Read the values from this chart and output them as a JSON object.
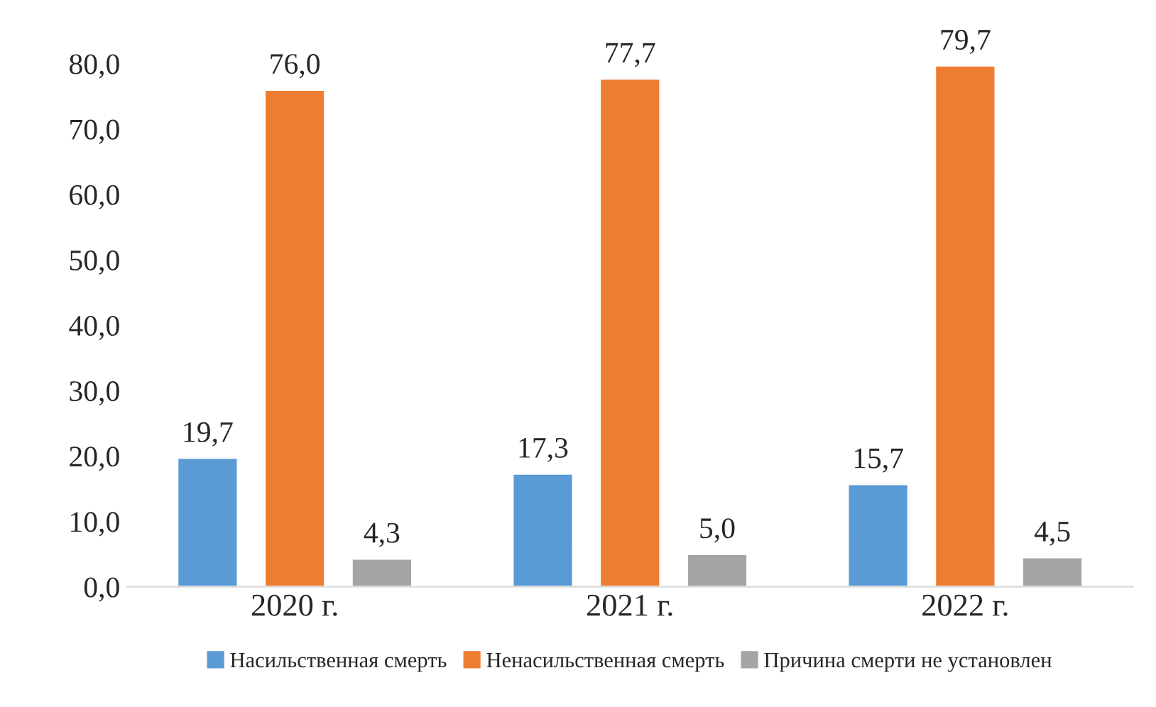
{
  "chart_data": {
    "type": "bar",
    "categories": [
      "2020 г.",
      "2021 г.",
      "2022 г."
    ],
    "series": [
      {
        "name": "Насильственная смерть",
        "color": "#5b9bd5",
        "values": [
          19.7,
          17.3,
          15.7
        ],
        "value_labels": [
          "19,7",
          "17,3",
          "15,7"
        ]
      },
      {
        "name": "Ненасильственная смерть",
        "color": "#ed7d31",
        "values": [
          76.0,
          77.7,
          79.7
        ],
        "value_labels": [
          "76,0",
          "77,7",
          "79,7"
        ]
      },
      {
        "name": "Причина смерти не установлен",
        "color": "#a5a5a5",
        "values": [
          4.3,
          5.0,
          4.5
        ],
        "value_labels": [
          "4,3",
          "5,0",
          "4,5"
        ]
      }
    ],
    "ylim": [
      0,
      80
    ],
    "yticks": [
      {
        "value": 0,
        "label": "0,0"
      },
      {
        "value": 10,
        "label": "10,0"
      },
      {
        "value": 20,
        "label": "20,0"
      },
      {
        "value": 30,
        "label": "30,0"
      },
      {
        "value": 40,
        "label": "40,0"
      },
      {
        "value": 50,
        "label": "50,0"
      },
      {
        "value": 60,
        "label": "60,0"
      },
      {
        "value": 70,
        "label": "70,0"
      },
      {
        "value": 80,
        "label": "80,0"
      }
    ],
    "grid": false,
    "legend": "bottom"
  }
}
